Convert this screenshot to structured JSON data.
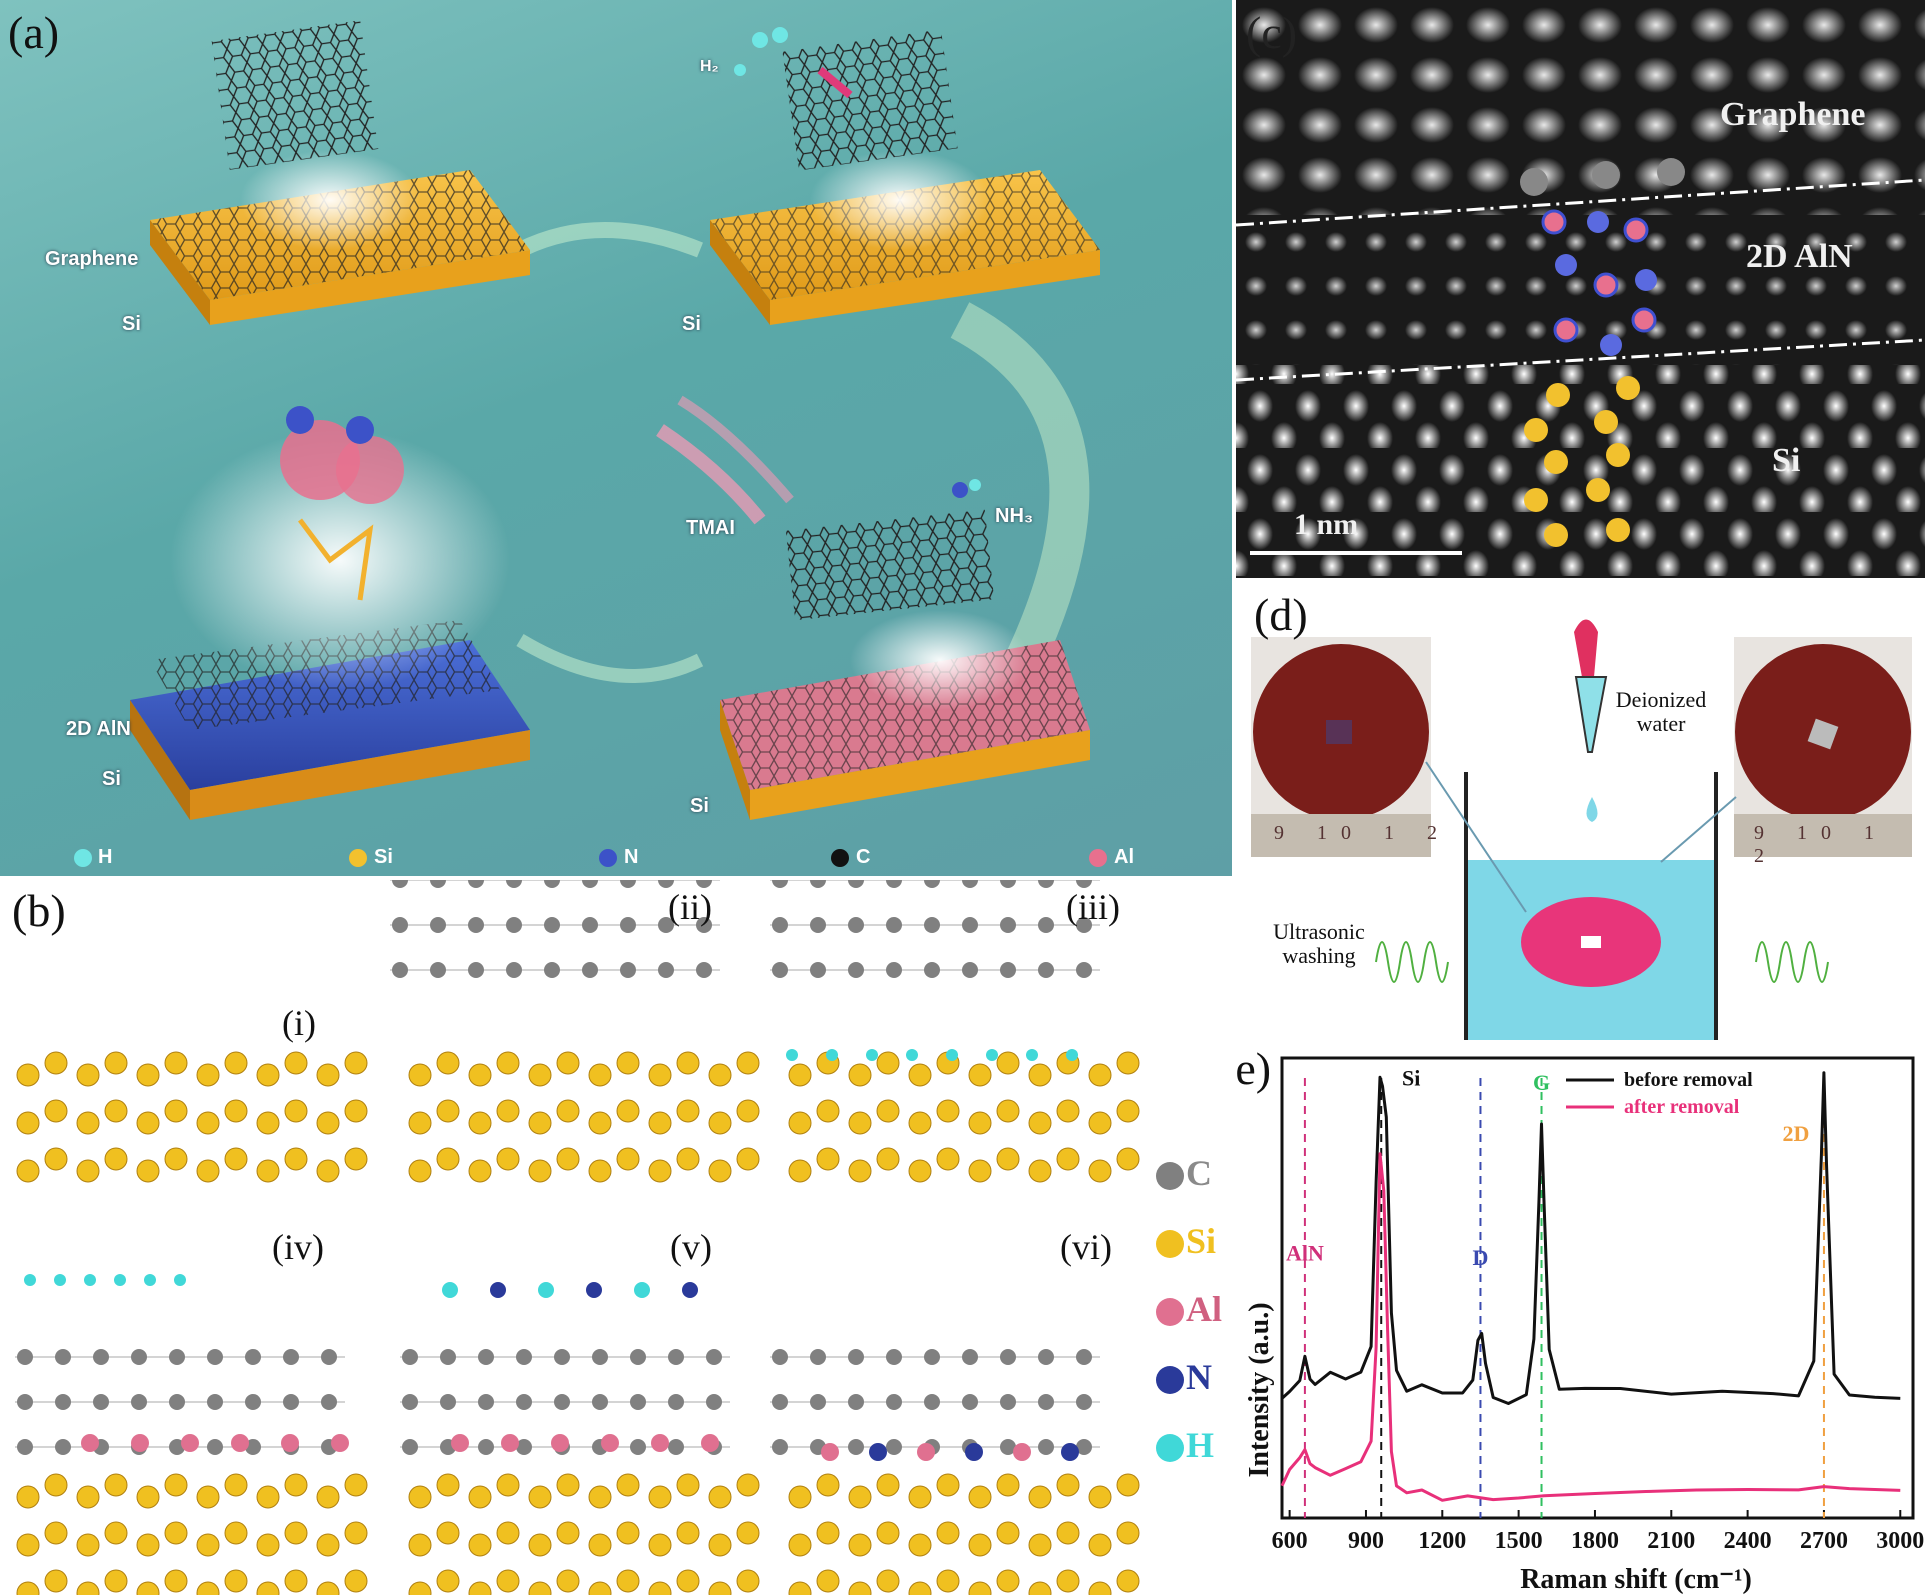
{
  "panel_a": {
    "label": "(a)",
    "texts": {
      "graphene": "Graphene",
      "si_1": "Si",
      "si_2": "Si",
      "h2": "H₂",
      "aln": "2D AlN",
      "si_3": "Si",
      "tmai": "TMAI",
      "nh3": "NH₃",
      "si_4": "Si"
    },
    "legend": [
      {
        "label": "H",
        "color": "#6fe6e4"
      },
      {
        "label": "Si",
        "color": "#f2c12e"
      },
      {
        "label": "N",
        "color": "#3c52c8"
      },
      {
        "label": "C",
        "color": "#111111"
      },
      {
        "label": "Al",
        "color": "#e8708e"
      }
    ]
  },
  "panel_b": {
    "label": "(b)",
    "subpanels": [
      "(i)",
      "(ii)",
      "(iii)",
      "(iv)",
      "(v)",
      "(vi)"
    ],
    "legend": [
      {
        "label": "C",
        "color": "#808080"
      },
      {
        "label": "Si",
        "color": "#f0c020"
      },
      {
        "label": "Al",
        "color": "#e07090"
      },
      {
        "label": "N",
        "color": "#2a3a9a"
      },
      {
        "label": "H",
        "color": "#40d8d8"
      }
    ]
  },
  "panel_c": {
    "label": "(c)",
    "graphene": "Graphene",
    "aln": "2D AlN",
    "si": "Si",
    "scalebar": "1 nm"
  },
  "panel_d": {
    "label": "(d)",
    "water": [
      "Deionized",
      "water"
    ],
    "wash": [
      "Ultrasonic",
      "washing"
    ],
    "ruler_left": [
      "9",
      "10",
      "1",
      "2"
    ],
    "ruler_right": [
      "9",
      "10",
      "1",
      "2"
    ]
  },
  "chart_data": {
    "type": "line",
    "label": "(e)",
    "xlabel": "Raman shift (cm⁻¹)",
    "ylabel": "Intensity (a.u.)",
    "xlim": [
      570,
      3050
    ],
    "xticks": [
      "600",
      "900",
      "1200",
      "1500",
      "1800",
      "2100",
      "2400",
      "2700",
      "3000"
    ],
    "xtick_values": [
      600,
      900,
      1200,
      1500,
      1800,
      2100,
      2400,
      2700,
      3000
    ],
    "ylim": [
      0,
      1
    ],
    "series": [
      {
        "name": "before removal",
        "color": "#111111",
        "x": [
          570,
          600,
          640,
          660,
          680,
          700,
          760,
          820,
          880,
          920,
          940,
          955,
          965,
          980,
          1000,
          1020,
          1060,
          1120,
          1200,
          1280,
          1320,
          1340,
          1355,
          1370,
          1400,
          1460,
          1530,
          1560,
          1580,
          1590,
          1600,
          1620,
          1660,
          1760,
          1900,
          2100,
          2300,
          2500,
          2600,
          2660,
          2690,
          2700,
          2710,
          2740,
          2800,
          2900,
          3000
        ],
        "y": [
          0.26,
          0.27,
          0.29,
          0.34,
          0.29,
          0.28,
          0.31,
          0.3,
          0.32,
          0.38,
          0.74,
          0.97,
          0.95,
          0.88,
          0.45,
          0.32,
          0.27,
          0.28,
          0.26,
          0.26,
          0.29,
          0.38,
          0.4,
          0.34,
          0.27,
          0.26,
          0.28,
          0.4,
          0.7,
          0.86,
          0.68,
          0.36,
          0.27,
          0.27,
          0.27,
          0.26,
          0.27,
          0.27,
          0.27,
          0.35,
          0.8,
          0.98,
          0.78,
          0.32,
          0.27,
          0.26,
          0.26
        ]
      },
      {
        "name": "after removal",
        "color": "#e8307a",
        "x": [
          570,
          600,
          640,
          660,
          680,
          700,
          760,
          820,
          880,
          920,
          940,
          955,
          970,
          985,
          1000,
          1020,
          1060,
          1120,
          1200,
          1300,
          1400,
          1500,
          1600,
          1800,
          2000,
          2200,
          2400,
          2600,
          2700,
          2800,
          3000
        ],
        "y": [
          0.07,
          0.11,
          0.14,
          0.16,
          0.13,
          0.12,
          0.1,
          0.11,
          0.12,
          0.16,
          0.36,
          0.78,
          0.7,
          0.4,
          0.14,
          0.07,
          0.06,
          0.07,
          0.05,
          0.06,
          0.05,
          0.05,
          0.05,
          0.05,
          0.05,
          0.05,
          0.05,
          0.05,
          0.06,
          0.06,
          0.06
        ]
      }
    ],
    "annotations": [
      {
        "label": "AlN",
        "x": 660,
        "color": "#d0307a"
      },
      {
        "label": "Si",
        "x": 960,
        "color": "#111111"
      },
      {
        "label": "D",
        "x": 1350,
        "color": "#3a4ab0"
      },
      {
        "label": "G",
        "x": 1590,
        "color": "#30c060"
      },
      {
        "label": "2D",
        "x": 2700,
        "color": "#f0a040"
      }
    ]
  }
}
